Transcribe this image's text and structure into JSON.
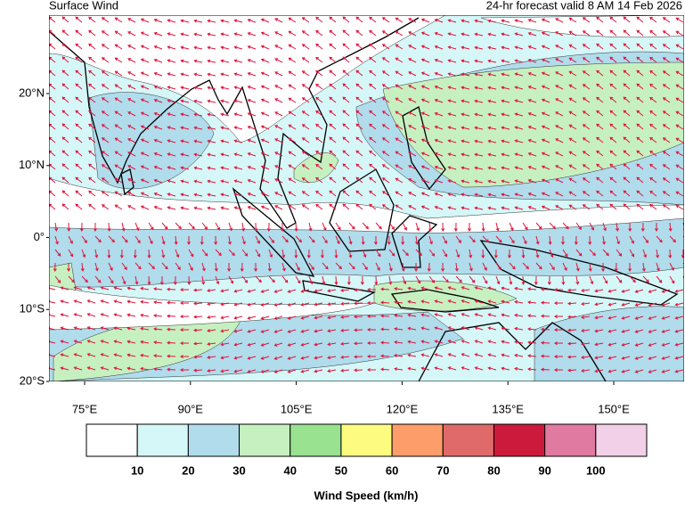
{
  "header": {
    "title": "Surface Wind",
    "subtitle": "24-hr forecast valid 8 AM 14 Feb 2026"
  },
  "map": {
    "lat_labels": [
      "20°N",
      "10°N",
      "0°",
      "10°S",
      "20°S"
    ],
    "lon_labels": [
      "75°E",
      "90°E",
      "105°E",
      "120°E",
      "135°E",
      "150°E"
    ]
  },
  "colorbar": {
    "colors": [
      "#ffffff",
      "#d5f7f7",
      "#b0dcec",
      "#c6f0c0",
      "#98e290",
      "#fdfc80",
      "#fd9d6a",
      "#e06a6a",
      "#cc1a3c",
      "#e07aa0",
      "#f2d0e8"
    ],
    "ticks": [
      10,
      20,
      30,
      40,
      50,
      60,
      70,
      80,
      90,
      100
    ],
    "label": "Wind Speed (km/h)"
  }
}
